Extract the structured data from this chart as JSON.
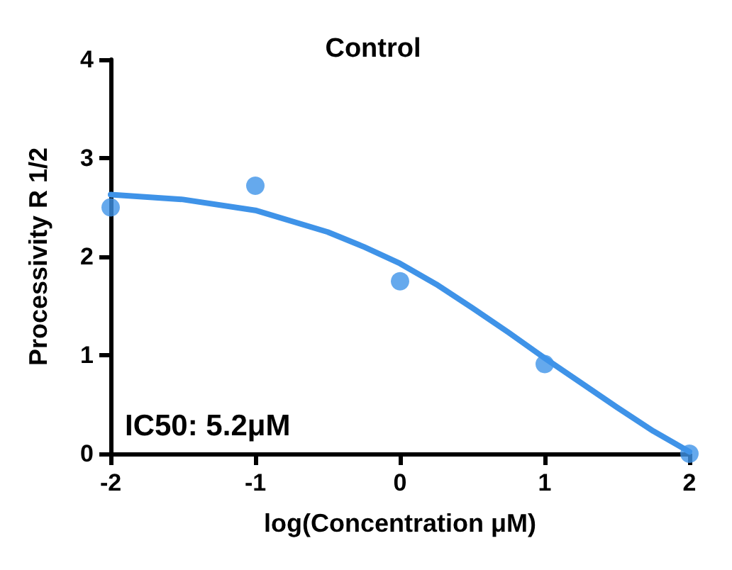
{
  "chart_data": {
    "type": "scatter",
    "title": "Control",
    "xlabel": "log(Concentration μM)",
    "ylabel": "Processivity R 1/2",
    "annotations": [
      "IC50: 5.2μM"
    ],
    "xlim": [
      -2,
      2
    ],
    "xticks": [
      -2,
      -1,
      0,
      1,
      2
    ],
    "ylim": [
      0,
      4
    ],
    "yticks": [
      0,
      1,
      2,
      3,
      4
    ],
    "grid": false,
    "series": [
      {
        "color": "#3f93e8",
        "marker": "circle",
        "x": [
          -2,
          -1,
          0,
          1,
          2
        ],
        "values": [
          2.5,
          2.72,
          1.75,
          0.91,
          0
        ]
      },
      {
        "type": "line",
        "color": "#3f93e8",
        "marker": "none",
        "line_style": "solid",
        "x": [
          -2,
          -1.5,
          -1,
          -0.5,
          -0.25,
          0,
          0.25,
          0.5,
          0.75,
          1,
          1.25,
          1.5,
          1.75,
          2
        ],
        "values": [
          2.63,
          2.58,
          2.47,
          2.25,
          2.1,
          1.93,
          1.72,
          1.48,
          1.23,
          0.97,
          0.72,
          0.47,
          0.23,
          0.02
        ]
      }
    ]
  }
}
